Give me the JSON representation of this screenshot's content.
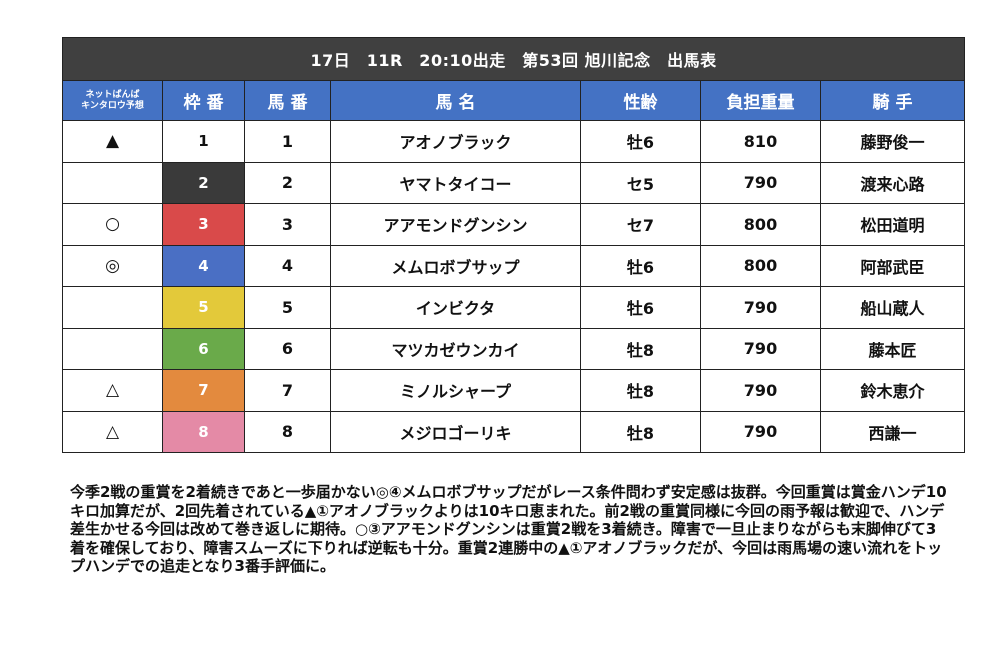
{
  "title": "17日　11R　20:10出走　第53回 旭川記念　出馬表",
  "headers": {
    "prediction": [
      "ネットばんば",
      "キンタロウ予想"
    ],
    "waku": "枠 番",
    "umaban": "馬 番",
    "horse_name": "馬 名",
    "sex_age": "性齢",
    "weight": "負担重量",
    "jockey": "騎 手"
  },
  "colors": {
    "title_bg": "#404040",
    "header_bg": "#4472c4",
    "waku": [
      "#ffffff",
      "#3a3a3a",
      "#d94a4a",
      "#4a6fc4",
      "#e3c93a",
      "#6aaa4a",
      "#e38a3e",
      "#e48aa6"
    ]
  },
  "entries": [
    {
      "mark": "▲",
      "waku": "1",
      "umaban": "1",
      "name": "アオノブラック",
      "sex_age": "牡6",
      "weight": "810",
      "jockey": "藤野俊一"
    },
    {
      "mark": "",
      "waku": "2",
      "umaban": "2",
      "name": "ヤマトタイコー",
      "sex_age": "セ5",
      "weight": "790",
      "jockey": "渡来心路"
    },
    {
      "mark": "○",
      "waku": "3",
      "umaban": "3",
      "name": "アアモンドグンシン",
      "sex_age": "セ7",
      "weight": "800",
      "jockey": "松田道明"
    },
    {
      "mark": "◎",
      "waku": "4",
      "umaban": "4",
      "name": "メムロボブサップ",
      "sex_age": "牡6",
      "weight": "800",
      "jockey": "阿部武臣"
    },
    {
      "mark": "",
      "waku": "5",
      "umaban": "5",
      "name": "インビクタ",
      "sex_age": "牡6",
      "weight": "790",
      "jockey": "船山蔵人"
    },
    {
      "mark": "",
      "waku": "6",
      "umaban": "6",
      "name": "マツカゼウンカイ",
      "sex_age": "牡8",
      "weight": "790",
      "jockey": "藤本匠"
    },
    {
      "mark": "△",
      "waku": "7",
      "umaban": "7",
      "name": "ミノルシャープ",
      "sex_age": "牡8",
      "weight": "790",
      "jockey": "鈴木恵介"
    },
    {
      "mark": "△",
      "waku": "8",
      "umaban": "8",
      "name": "メジロゴーリキ",
      "sex_age": "牡8",
      "weight": "790",
      "jockey": "西謙一"
    }
  ],
  "commentary": "今季2戦の重賞を2着続きであと一歩届かない◎④メムロボブサップだがレース条件問わず安定感は抜群。今回重賞は賞金ハンデ10キロ加算だが、2回先着されている▲①アオノブラックよりは10キロ恵まれた。前2戦の重賞同様に今回の雨予報は歓迎で、ハンデ差生かせる今回は改めて巻き返しに期待。○③アアモンドグンシンは重賞2戦を3着続き。障害で一旦止まりながらも末脚伸びて3着を確保しており、障害スムーズに下りれば逆転も十分。重賞2連勝中の▲①アオノブラックだが、今回は雨馬場の速い流れをトップハンデでの追走となり3番手評価に。"
}
